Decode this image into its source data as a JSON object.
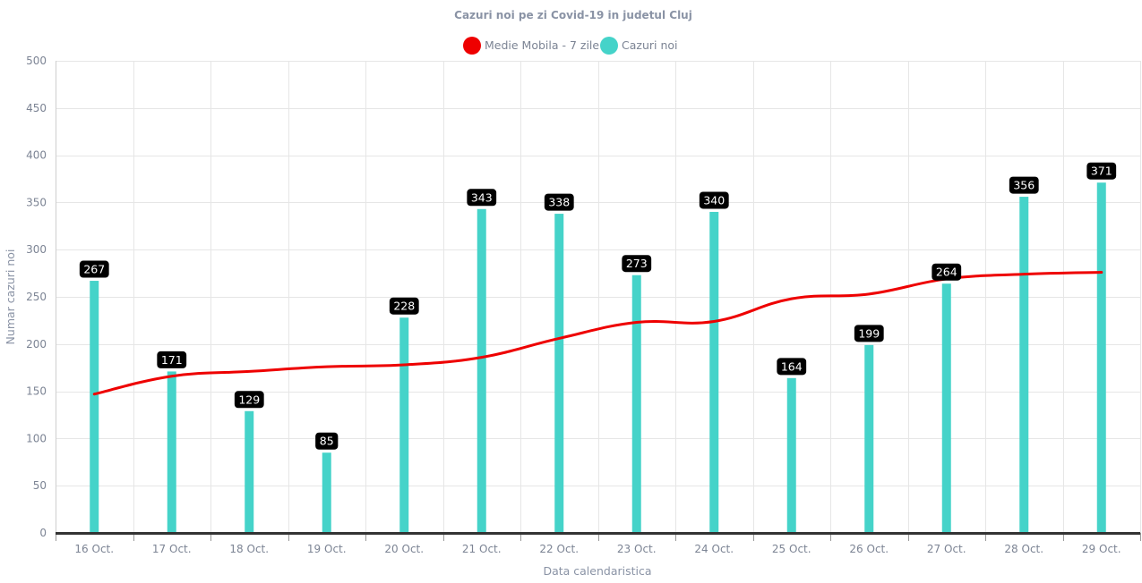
{
  "colors": {
    "bars": "#45d3c9",
    "line": "#ee0000",
    "grid": "#e6e6e6",
    "baseline": "#333333",
    "label_bg": "#000000",
    "label_text": "#ffffff"
  },
  "chart_data": {
    "type": "bar",
    "title": "Cazuri noi pe zi Covid-19 in judetul Cluj",
    "xlabel": "Data calendaristica",
    "ylabel": "Numar cazuri noi",
    "categories": [
      "16 Oct.",
      "17 Oct.",
      "18 Oct.",
      "19 Oct.",
      "20 Oct.",
      "21 Oct.",
      "22 Oct.",
      "23 Oct.",
      "24 Oct.",
      "25 Oct.",
      "26 Oct.",
      "27 Oct.",
      "28 Oct.",
      "29 Oct."
    ],
    "ylim": [
      0,
      500
    ],
    "yticks": [
      0,
      50,
      100,
      150,
      200,
      250,
      300,
      350,
      400,
      450,
      500
    ],
    "grid": true,
    "legend_position": "top",
    "series": [
      {
        "name": "Medie Mobila - 7 zile",
        "type": "line",
        "color": "#ee0000",
        "values": [
          147,
          166,
          171,
          176,
          178,
          186,
          206,
          223,
          224,
          248,
          253,
          269,
          274,
          276
        ]
      },
      {
        "name": "Cazuri noi",
        "type": "bar",
        "color": "#45d3c9",
        "values": [
          267,
          171,
          129,
          85,
          228,
          343,
          338,
          273,
          340,
          164,
          199,
          264,
          356,
          371
        ],
        "data_labels": true
      }
    ]
  }
}
